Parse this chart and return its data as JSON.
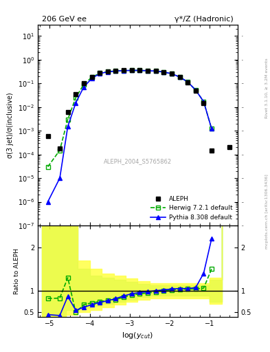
{
  "title_left": "206 GeV ee",
  "title_right": "γ*/Z (Hadronic)",
  "ylabel_main": "σ(3 jet)/σ(inclusive)",
  "ylabel_ratio": "Ratio to ALEPH",
  "xlabel": "log(y_{cut})",
  "watermark": "ALEPH_2004_S5765862",
  "side_text": "mcplots.cern.ch [arXiv:1306.3436]",
  "side_text2": "Rivet 3.1.10, ≥ 3.2M events",
  "aleph_x": [
    -5.05,
    -4.75,
    -4.55,
    -4.35,
    -4.15,
    -3.95,
    -3.75,
    -3.55,
    -3.35,
    -3.15,
    -2.95,
    -2.75,
    -2.55,
    -2.35,
    -2.15,
    -1.95,
    -1.75,
    -1.55,
    -1.35,
    -1.15,
    -0.95,
    -0.5
  ],
  "aleph_y": [
    0.0006,
    0.00018,
    0.006,
    0.035,
    0.1,
    0.19,
    0.28,
    0.32,
    0.34,
    0.35,
    0.35,
    0.35,
    0.34,
    0.33,
    0.3,
    0.25,
    0.18,
    0.11,
    0.05,
    0.015,
    0.00015,
    0.0002
  ],
  "herwig_x": [
    -5.05,
    -4.75,
    -4.55,
    -4.35,
    -4.15,
    -3.95,
    -3.75,
    -3.55,
    -3.35,
    -3.15,
    -2.95,
    -2.75,
    -2.55,
    -2.35,
    -2.15,
    -1.95,
    -1.75,
    -1.55,
    -1.35,
    -1.15,
    -0.95
  ],
  "herwig_y": [
    3e-05,
    0.00015,
    0.003,
    0.025,
    0.09,
    0.18,
    0.27,
    0.31,
    0.335,
    0.345,
    0.35,
    0.35,
    0.34,
    0.33,
    0.3,
    0.255,
    0.185,
    0.115,
    0.052,
    0.017,
    0.0012
  ],
  "pythia_x": [
    -5.05,
    -4.75,
    -4.55,
    -4.35,
    -4.15,
    -3.95,
    -3.75,
    -3.55,
    -3.35,
    -3.15,
    -2.95,
    -2.75,
    -2.55,
    -2.35,
    -2.15,
    -1.95,
    -1.75,
    -1.55,
    -1.35,
    -1.15,
    -0.95
  ],
  "pythia_y": [
    1e-06,
    1e-05,
    0.0015,
    0.015,
    0.07,
    0.16,
    0.26,
    0.305,
    0.33,
    0.345,
    0.35,
    0.35,
    0.34,
    0.33,
    0.3,
    0.255,
    0.185,
    0.115,
    0.052,
    0.017,
    0.0012
  ],
  "herwig_ratio": [
    0.82,
    0.83,
    1.3,
    0.5,
    0.68,
    0.72,
    0.75,
    0.78,
    0.8,
    0.85,
    0.9,
    0.93,
    0.95,
    0.97,
    1.0,
    1.02,
    1.03,
    1.04,
    1.04,
    1.06,
    1.5
  ],
  "pythia_ratio": [
    0.45,
    0.43,
    0.87,
    0.55,
    0.62,
    0.68,
    0.73,
    0.77,
    0.82,
    0.88,
    0.93,
    0.96,
    0.98,
    1.0,
    1.02,
    1.04,
    1.05,
    1.05,
    1.07,
    1.4,
    2.2
  ],
  "band_x": [
    -5.2,
    -4.9,
    -4.6,
    -4.3,
    -4.0,
    -3.7,
    -3.4,
    -3.1,
    -2.8,
    -2.5,
    -2.2,
    -1.9,
    -1.6,
    -1.3,
    -1.0,
    -0.7
  ],
  "green_band_low": [
    0.3,
    0.3,
    0.55,
    0.6,
    0.65,
    0.7,
    0.75,
    0.8,
    0.85,
    0.88,
    0.88,
    0.88,
    0.88,
    0.88,
    0.75,
    0.75
  ],
  "green_band_high": [
    2.5,
    2.5,
    2.5,
    1.5,
    1.35,
    1.3,
    1.25,
    1.2,
    1.15,
    1.12,
    1.12,
    1.12,
    1.12,
    1.12,
    1.25,
    2.5
  ],
  "yellow_band_low": [
    0.3,
    0.3,
    0.45,
    0.5,
    0.55,
    0.62,
    0.68,
    0.75,
    0.8,
    0.83,
    0.83,
    0.83,
    0.83,
    0.83,
    0.7,
    0.7
  ],
  "yellow_band_high": [
    2.5,
    2.5,
    2.5,
    1.7,
    1.5,
    1.4,
    1.35,
    1.28,
    1.22,
    1.17,
    1.17,
    1.17,
    1.17,
    1.17,
    1.3,
    2.5
  ],
  "xlim": [
    -5.3,
    -0.3
  ],
  "ylim_main": [
    1e-07,
    30
  ],
  "ylim_ratio": [
    0.4,
    2.5
  ],
  "colors": {
    "aleph": "#000000",
    "herwig": "#00aa00",
    "pythia": "#0000ff",
    "green_band": "#00cc00",
    "yellow_band": "#ffff00",
    "ratio_line": "#000000"
  }
}
